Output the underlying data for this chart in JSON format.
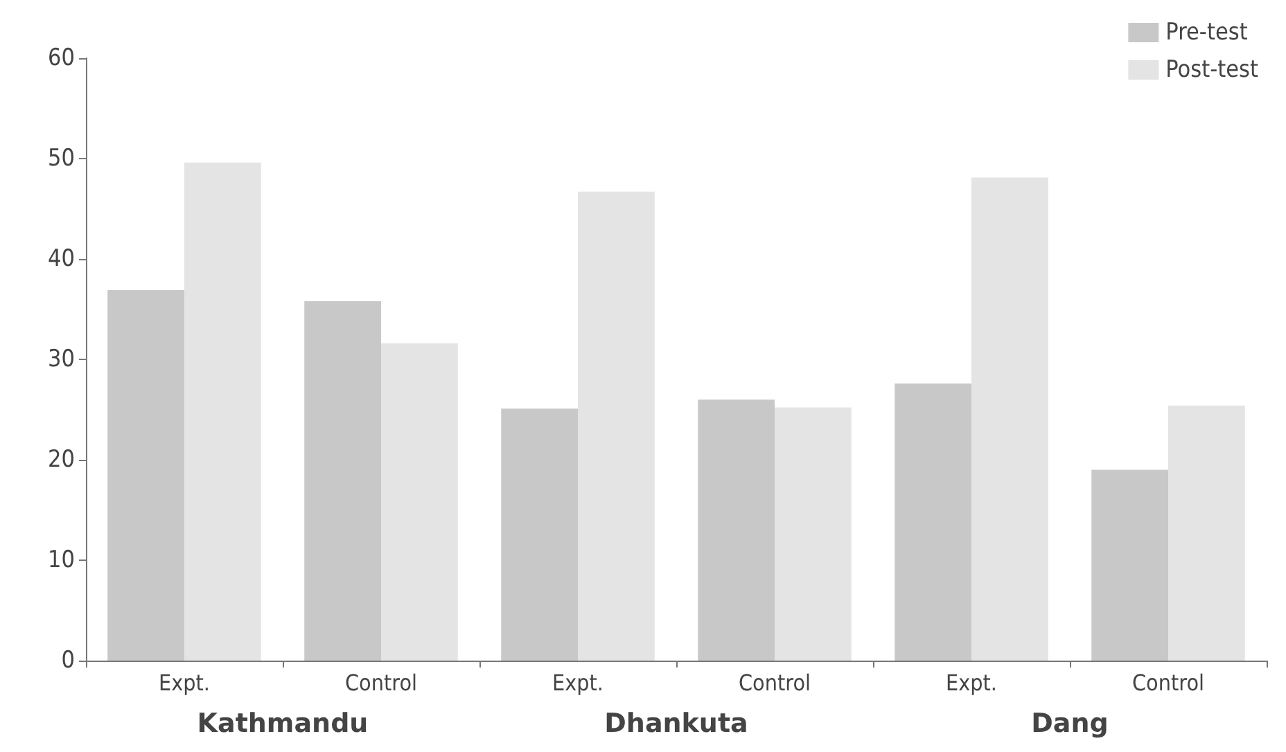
{
  "chart_data": {
    "type": "bar",
    "categories": [
      "Expt.",
      "Control",
      "Expt.",
      "Control",
      "Expt.",
      "Control"
    ],
    "series": [
      {
        "name": "Pre-test",
        "color": "#c8c8c8",
        "values": [
          36.9,
          35.8,
          25.1,
          26.0,
          27.6,
          19.0
        ]
      },
      {
        "name": "Post-test",
        "color": "#e4e4e4",
        "values": [
          49.6,
          31.6,
          46.7,
          25.2,
          48.1,
          25.4
        ]
      }
    ],
    "annotations": [
      "Kathmandu",
      "Dhankuta",
      "Dang"
    ],
    "ylim": [
      0,
      60
    ],
    "yticks": [
      0,
      10,
      20,
      30,
      40,
      50,
      60
    ],
    "grid": false,
    "legend": "top right"
  }
}
